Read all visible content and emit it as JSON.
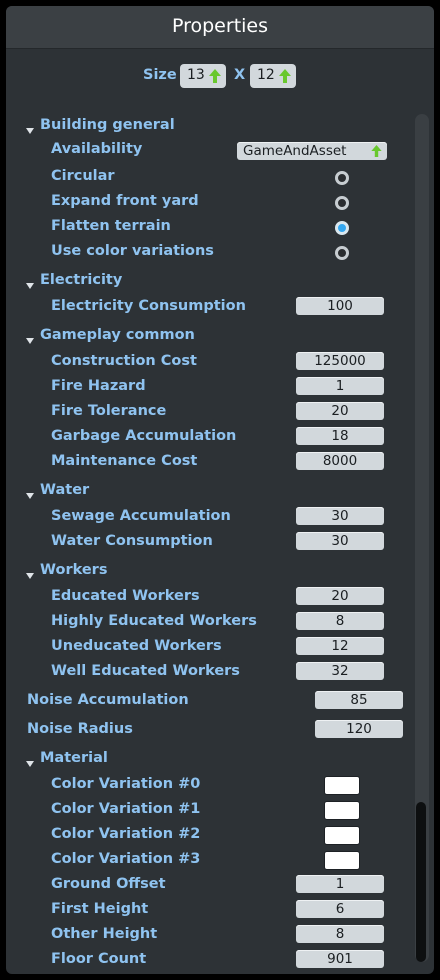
{
  "window": {
    "title": "Properties"
  },
  "size": {
    "label": "Size",
    "x_sep": "X",
    "width": "13",
    "height": "12"
  },
  "building_general": {
    "header": "Building general",
    "availability_label": "Availability",
    "availability_value": "GameAndAsset",
    "circular_label": "Circular",
    "circular_on": false,
    "expand_front_yard_label": "Expand front yard",
    "expand_front_yard_on": false,
    "flatten_terrain_label": "Flatten terrain",
    "flatten_terrain_on": true,
    "use_color_variations_label": "Use color variations",
    "use_color_variations_on": false
  },
  "electricity": {
    "header": "Electricity",
    "consumption_label": "Electricity Consumption",
    "consumption_value": "100"
  },
  "gameplay_common": {
    "header": "Gameplay common",
    "construction_cost_label": "Construction Cost",
    "construction_cost_value": "125000",
    "fire_hazard_label": "Fire Hazard",
    "fire_hazard_value": "1",
    "fire_tolerance_label": "Fire Tolerance",
    "fire_tolerance_value": "20",
    "garbage_label": "Garbage Accumulation",
    "garbage_value": "18",
    "maintenance_label": "Maintenance Cost",
    "maintenance_value": "8000"
  },
  "water": {
    "header": "Water",
    "sewage_label": "Sewage Accumulation",
    "sewage_value": "30",
    "consumption_label": "Water Consumption",
    "consumption_value": "30"
  },
  "workers": {
    "header": "Workers",
    "educated_label": "Educated Workers",
    "educated_value": "20",
    "highly_label": "Highly Educated Workers",
    "highly_value": "8",
    "uneducated_label": "Uneducated Workers",
    "uneducated_value": "12",
    "well_label": "Well Educated Workers",
    "well_value": "32"
  },
  "noise": {
    "accumulation_label": "Noise Accumulation",
    "accumulation_value": "85",
    "radius_label": "Noise Radius",
    "radius_value": "120"
  },
  "material": {
    "header": "Material",
    "cv0_label": "Color Variation #0",
    "cv1_label": "Color Variation #1",
    "cv2_label": "Color Variation #2",
    "cv3_label": "Color Variation #3",
    "color_variation_color": "#ffffff",
    "ground_offset_label": "Ground Offset",
    "ground_offset_value": "1",
    "first_height_label": "First Height",
    "first_height_value": "6",
    "other_height_label": "Other Height",
    "other_height_value": "8",
    "floor_count_label": "Floor Count",
    "floor_count_value": "901"
  },
  "colors": {
    "accent_label": "#8fc3f0",
    "radio_selected": "#33a7f0",
    "arrow_green": "#69c82e",
    "panel_bg": "#2d3236"
  },
  "icons": {
    "up_arrow": "up-arrow-icon",
    "collapse": "collapse-triangle-icon"
  }
}
